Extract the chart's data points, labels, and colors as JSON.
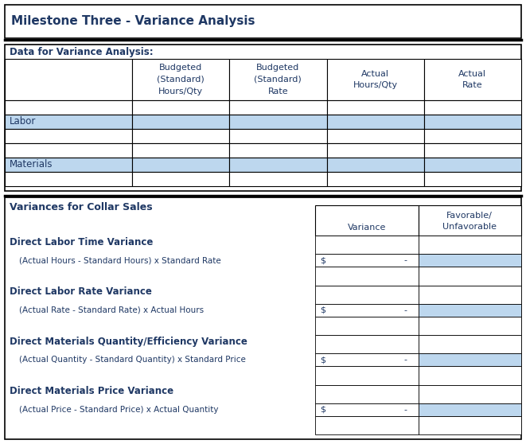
{
  "title": "Milestone Three - Variance Analysis",
  "section1_label": "Data for Variance Analysis:",
  "col_headers": [
    "Budgeted\n(Standard)\nHours/Qty",
    "Budgeted\n(Standard)\nRate",
    "Actual\nHours/Qty",
    "Actual\nRate"
  ],
  "row_labels": [
    "Labor",
    "Materials"
  ],
  "section2_label": "Variances for Collar Sales",
  "variance_headers": [
    "Variance",
    "Favorable/\nUnfavorable"
  ],
  "variance_items": [
    {
      "title": "Direct Labor Time Variance",
      "formula": "(Actual Hours - Standard Hours) x Standard Rate"
    },
    {
      "title": "Direct Labor Rate Variance",
      "formula": "(Actual Rate - Standard Rate) x Actual Hours"
    },
    {
      "title": "Direct Materials Quantity/Efficiency Variance",
      "formula": "(Actual Quantity - Standard Quantity) x Standard Price"
    },
    {
      "title": "Direct Materials Price Variance",
      "formula": "(Actual Price - Standard Price) x Actual Quantity"
    }
  ],
  "light_blue": "#BDD7EE",
  "white": "#FFFFFF",
  "border_color": "#000000",
  "title_color": "#1F3864",
  "label_color": "#1F3864",
  "formula_color": "#1F3864",
  "header_color": "#1F3864",
  "bg_color": "#FFFFFF",
  "fig_w": 6.61,
  "fig_h": 5.58,
  "dpi": 100
}
